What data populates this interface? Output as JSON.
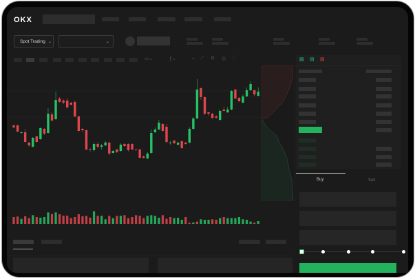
{
  "header": {
    "logo": "OKX",
    "nav_items": [
      "",
      "",
      "",
      "",
      ""
    ]
  },
  "controls": {
    "market_type": "Spot Trading",
    "pair_select": ""
  },
  "trade": {
    "tabs": [
      "Buy",
      "Sell"
    ],
    "active_tab": "Buy",
    "slider_percent": 0
  },
  "colors": {
    "up": "#26c265",
    "down": "#e0464e",
    "accent": "#22b35c",
    "background": "#1b1b1b"
  },
  "chart_data": {
    "type": "candlestick",
    "candles": [
      [
        58,
        55,
        59,
        54
      ],
      [
        58,
        49,
        59,
        48
      ],
      [
        47,
        48,
        49,
        46
      ],
      [
        48,
        34,
        53,
        33
      ],
      [
        33,
        29,
        34,
        27
      ],
      [
        27,
        40,
        41,
        26
      ],
      [
        42,
        34,
        43,
        33
      ],
      [
        38,
        54,
        55,
        37
      ],
      [
        53,
        46,
        54,
        44
      ],
      [
        47,
        75,
        83,
        46
      ],
      [
        74,
        65,
        78,
        64
      ],
      [
        67,
        95,
        107,
        66
      ],
      [
        97,
        92,
        99,
        91
      ],
      [
        94,
        91,
        96,
        89
      ],
      [
        94,
        84,
        98,
        83
      ],
      [
        91,
        88,
        92,
        87
      ],
      [
        92,
        71,
        94,
        70
      ],
      [
        71,
        50,
        72,
        49
      ],
      [
        53,
        51,
        54,
        48
      ],
      [
        51,
        23,
        52,
        22
      ],
      [
        23,
        22,
        25,
        20
      ],
      [
        22,
        31,
        33,
        20
      ],
      [
        31,
        27,
        34,
        25
      ],
      [
        27,
        29,
        31,
        23
      ],
      [
        29,
        33,
        35,
        28
      ],
      [
        33,
        17,
        34,
        15
      ],
      [
        18,
        21,
        22,
        17
      ],
      [
        23,
        19,
        24,
        18
      ],
      [
        21,
        30,
        32,
        20
      ],
      [
        31,
        28,
        32,
        27
      ],
      [
        31,
        22,
        32,
        20
      ],
      [
        31,
        23,
        32,
        22
      ],
      [
        23,
        22,
        23,
        21
      ],
      [
        23,
        11,
        24,
        10
      ],
      [
        13,
        11,
        14,
        10
      ],
      [
        10,
        17,
        19,
        9
      ],
      [
        18,
        47,
        52,
        17
      ],
      [
        48,
        52,
        55,
        47
      ],
      [
        52,
        62,
        66,
        51
      ],
      [
        60,
        50,
        61,
        49
      ],
      [
        56,
        34,
        60,
        32
      ],
      [
        32,
        33,
        35,
        30
      ],
      [
        36,
        32,
        37,
        31
      ],
      [
        30,
        33,
        34,
        29
      ],
      [
        35,
        25,
        36,
        24
      ],
      [
        33,
        31,
        34,
        30
      ],
      [
        33,
        53,
        55,
        32
      ],
      [
        53,
        68,
        70,
        52
      ],
      [
        68,
        110,
        125,
        67
      ],
      [
        112,
        99,
        113,
        95
      ],
      [
        99,
        75,
        100,
        73
      ],
      [
        77,
        75,
        78,
        72
      ],
      [
        75,
        69,
        76,
        67
      ],
      [
        71,
        69,
        73,
        68
      ],
      [
        66,
        79,
        81,
        65
      ],
      [
        81,
        79,
        85,
        78
      ],
      [
        77,
        81,
        85,
        76
      ],
      [
        81,
        108,
        109,
        80
      ],
      [
        110,
        97,
        111,
        96
      ],
      [
        98,
        93,
        99,
        92
      ],
      [
        91,
        100,
        103,
        90
      ],
      [
        100,
        109,
        113,
        99
      ],
      [
        109,
        118,
        122,
        108
      ],
      [
        109,
        103,
        110,
        100
      ],
      [
        101,
        107,
        113,
        100
      ]
    ],
    "volume": [
      [
        30,
        "down"
      ],
      [
        32,
        "down"
      ],
      [
        22,
        "up"
      ],
      [
        33,
        "down"
      ],
      [
        25,
        "down"
      ],
      [
        38,
        "up"
      ],
      [
        30,
        "down"
      ],
      [
        27,
        "up"
      ],
      [
        30,
        "up"
      ],
      [
        50,
        "up"
      ],
      [
        43,
        "down"
      ],
      [
        50,
        "up"
      ],
      [
        42,
        "down"
      ],
      [
        36,
        "down"
      ],
      [
        36,
        "down"
      ],
      [
        25,
        "down"
      ],
      [
        30,
        "down"
      ],
      [
        42,
        "down"
      ],
      [
        33,
        "down"
      ],
      [
        35,
        "down"
      ],
      [
        27,
        "down"
      ],
      [
        55,
        "up"
      ],
      [
        35,
        "down"
      ],
      [
        35,
        "up"
      ],
      [
        20,
        "up"
      ],
      [
        35,
        "down"
      ],
      [
        25,
        "up"
      ],
      [
        35,
        "down"
      ],
      [
        35,
        "up"
      ],
      [
        38,
        "down"
      ],
      [
        25,
        "down"
      ],
      [
        30,
        "down"
      ],
      [
        38,
        "down"
      ],
      [
        35,
        "down"
      ],
      [
        25,
        "down"
      ],
      [
        35,
        "up"
      ],
      [
        38,
        "up"
      ],
      [
        35,
        "up"
      ],
      [
        27,
        "up"
      ],
      [
        38,
        "down"
      ],
      [
        22,
        "down"
      ],
      [
        30,
        "down"
      ],
      [
        25,
        "up"
      ],
      [
        27,
        "up"
      ],
      [
        18,
        "up"
      ],
      [
        30,
        "down"
      ],
      [
        5,
        "down"
      ],
      [
        6,
        "up"
      ],
      [
        10,
        "down"
      ],
      [
        20,
        "up"
      ],
      [
        18,
        "up"
      ],
      [
        18,
        "up"
      ],
      [
        20,
        "down"
      ],
      [
        18,
        "down"
      ],
      [
        25,
        "up"
      ],
      [
        30,
        "down"
      ],
      [
        25,
        "up"
      ],
      [
        25,
        "up"
      ],
      [
        25,
        "up"
      ],
      [
        30,
        "up"
      ],
      [
        20,
        "up"
      ],
      [
        18,
        "up"
      ],
      [
        10,
        "up"
      ],
      [
        5,
        "down"
      ],
      [
        12,
        "up"
      ]
    ]
  }
}
